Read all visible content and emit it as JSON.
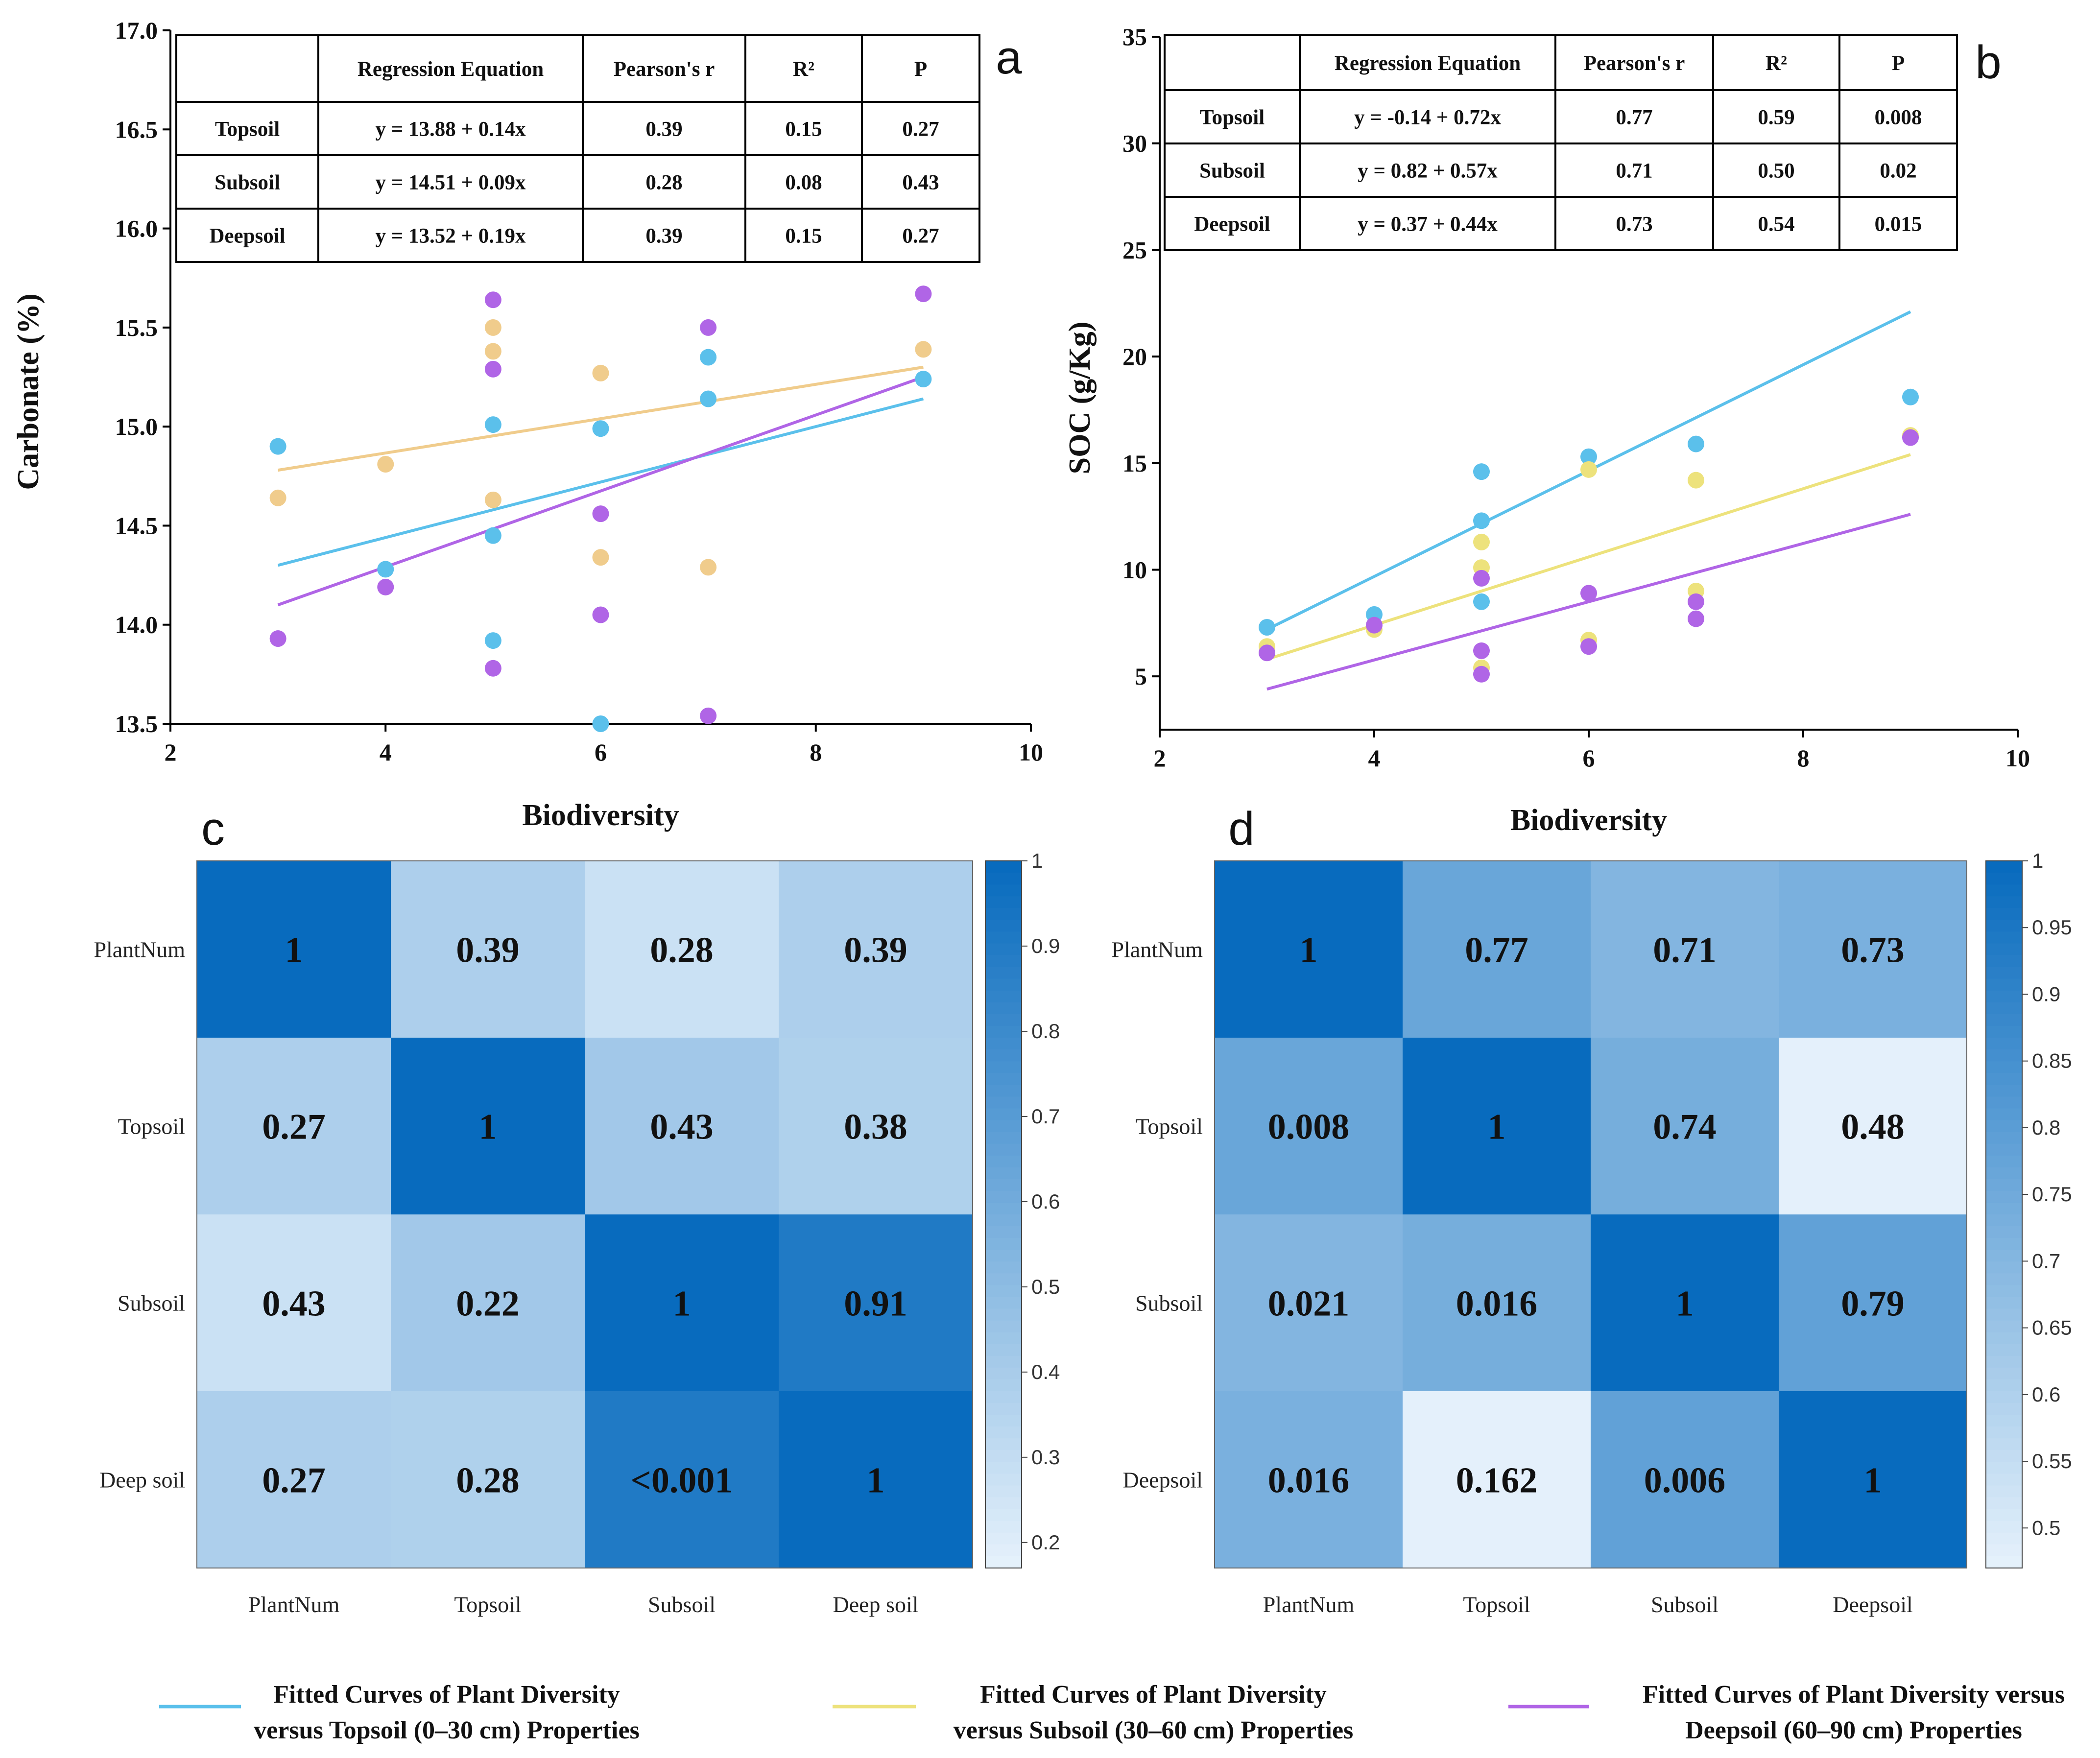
{
  "chart_data": [
    {
      "panel": "a",
      "type": "scatter",
      "xlabel": "Biodiversity",
      "ylabel": "Carbonate (%)",
      "xlim": [
        2,
        10
      ],
      "ylim": [
        13.5,
        17.0
      ],
      "xticks": [
        "2",
        "4",
        "6",
        "8",
        "10"
      ],
      "yticks": [
        "13.5",
        "14.0",
        "14.5",
        "15.0",
        "15.5",
        "16.0",
        "16.5",
        "17.0"
      ],
      "table": {
        "headers": [
          "",
          "Regression Equation",
          "Pearson's r",
          "R²",
          "P"
        ],
        "rows": [
          [
            "Topsoil",
            "y = 13.88 + 0.14x",
            "0.39",
            "0.15",
            "0.27"
          ],
          [
            "Subsoil",
            "y = 14.51 + 0.09x",
            "0.28",
            "0.08",
            "0.43"
          ],
          [
            "Deepsoil",
            "y = 13.52 + 0.19x",
            "0.39",
            "0.15",
            "0.27"
          ]
        ]
      },
      "series": [
        {
          "name": "Topsoil",
          "color": "#5bc0eb",
          "points": [
            [
              3,
              14.9
            ],
            [
              4,
              14.28
            ],
            [
              5,
              15.01
            ],
            [
              5,
              14.45
            ],
            [
              5,
              13.92
            ],
            [
              6,
              14.99
            ],
            [
              6,
              13.5
            ],
            [
              7,
              15.35
            ],
            [
              7,
              15.14
            ],
            [
              9,
              15.24
            ]
          ],
          "fit": [
            [
              3,
              14.3
            ],
            [
              9,
              15.14
            ]
          ]
        },
        {
          "name": "Subsoil",
          "color": "#f0cc8c",
          "points": [
            [
              3,
              14.64
            ],
            [
              4,
              14.81
            ],
            [
              5,
              15.5
            ],
            [
              5,
              15.38
            ],
            [
              5,
              14.63
            ],
            [
              6,
              15.27
            ],
            [
              6,
              14.34
            ],
            [
              7,
              14.29
            ],
            [
              9,
              15.39
            ]
          ],
          "fit": [
            [
              3,
              14.78
            ],
            [
              9,
              15.3
            ]
          ]
        },
        {
          "name": "Deepsoil",
          "color": "#b065e6",
          "points": [
            [
              3,
              13.93
            ],
            [
              4,
              14.19
            ],
            [
              5,
              15.64
            ],
            [
              5,
              15.29
            ],
            [
              5,
              13.78
            ],
            [
              6,
              14.56
            ],
            [
              6,
              14.05
            ],
            [
              7,
              15.5
            ],
            [
              7,
              13.54
            ],
            [
              9,
              15.67
            ]
          ],
          "fit": [
            [
              3,
              14.1
            ],
            [
              9,
              15.25
            ]
          ]
        }
      ]
    },
    {
      "panel": "b",
      "type": "scatter",
      "xlabel": "Biodiversity",
      "ylabel": "SOC (g/Kg)",
      "xlim": [
        2,
        10
      ],
      "ylim": [
        2.5,
        35
      ],
      "xticks": [
        "2",
        "4",
        "6",
        "8",
        "10"
      ],
      "yticks": [
        "5",
        "10",
        "15",
        "20",
        "25",
        "30",
        "35"
      ],
      "table": {
        "headers": [
          "",
          "Regression Equation",
          "Pearson's r",
          "R²",
          "P"
        ],
        "rows": [
          [
            "Topsoil",
            "y = -0.14 + 0.72x",
            "0.77",
            "0.59",
            "0.008"
          ],
          [
            "Subsoil",
            "y = 0.82 + 0.57x",
            "0.71",
            "0.50",
            "0.02"
          ],
          [
            "Deepsoil",
            "y = 0.37 + 0.44x",
            "0.73",
            "0.54",
            "0.015"
          ]
        ]
      },
      "series": [
        {
          "name": "Topsoil",
          "color": "#5bc0eb",
          "points": [
            [
              3,
              7.3
            ],
            [
              4,
              7.9
            ],
            [
              5,
              14.6
            ],
            [
              5,
              12.3
            ],
            [
              5,
              8.5
            ],
            [
              6,
              15.3
            ],
            [
              7,
              15.9
            ],
            [
              9,
              18.1
            ]
          ],
          "fit": [
            [
              3,
              7.2
            ],
            [
              9,
              22.1
            ]
          ]
        },
        {
          "name": "Subsoil",
          "color": "#ede27c",
          "points": [
            [
              3,
              6.4
            ],
            [
              4,
              7.2
            ],
            [
              5,
              11.3
            ],
            [
              5,
              10.1
            ],
            [
              5,
              5.4
            ],
            [
              6,
              14.7
            ],
            [
              6,
              6.7
            ],
            [
              7,
              14.2
            ],
            [
              7,
              9.0
            ],
            [
              9,
              16.3
            ]
          ],
          "fit": [
            [
              3,
              5.8
            ],
            [
              9,
              15.4
            ]
          ]
        },
        {
          "name": "Deepsoil",
          "color": "#b065e6",
          "points": [
            [
              3,
              6.1
            ],
            [
              4,
              7.4
            ],
            [
              5,
              9.6
            ],
            [
              5,
              6.2
            ],
            [
              5,
              5.1
            ],
            [
              6,
              8.9
            ],
            [
              6,
              6.4
            ],
            [
              7,
              8.5
            ],
            [
              7,
              7.7
            ],
            [
              9,
              16.2
            ]
          ],
          "fit": [
            [
              3,
              4.4
            ],
            [
              9,
              12.6
            ]
          ]
        }
      ]
    },
    {
      "panel": "c",
      "type": "heatmap",
      "rows": [
        "PlantNum",
        "Topsoil",
        "Subsoil",
        "Deep soil"
      ],
      "cols": [
        "PlantNum",
        "Topsoil",
        "Subsoil",
        "Deep soil"
      ],
      "labels": [
        [
          "1",
          "0.39",
          "0.28",
          "0.39"
        ],
        [
          "0.27",
          "1",
          "0.43",
          "0.38"
        ],
        [
          "0.43",
          "0.22",
          "1",
          "0.91"
        ],
        [
          "0.27",
          "0.28",
          "<0.001",
          "1"
        ]
      ],
      "colors": [
        [
          1.0,
          0.39,
          0.28,
          0.39
        ],
        [
          0.39,
          1.0,
          0.43,
          0.38
        ],
        [
          0.28,
          0.43,
          1.0,
          0.91
        ],
        [
          0.39,
          0.38,
          0.91,
          1.0
        ]
      ],
      "colorbar": {
        "min": 0.17,
        "max": 1.0,
        "ticks": [
          "0.2",
          "0.3",
          "0.4",
          "0.5",
          "0.6",
          "0.7",
          "0.8",
          "0.9",
          "1"
        ],
        "tick_values": [
          0.2,
          0.3,
          0.4,
          0.5,
          0.6,
          0.7,
          0.8,
          0.9,
          1.0
        ]
      }
    },
    {
      "panel": "d",
      "type": "heatmap",
      "rows": [
        "PlantNum",
        "Topsoil",
        "Subsoil",
        "Deepsoil"
      ],
      "cols": [
        "PlantNum",
        "Topsoil",
        "Subsoil",
        "Deepsoil"
      ],
      "labels": [
        [
          "1",
          "0.77",
          "0.71",
          "0.73"
        ],
        [
          "0.008",
          "1",
          "0.74",
          "0.48"
        ],
        [
          "0.021",
          "0.016",
          "1",
          "0.79"
        ],
        [
          "0.016",
          "0.162",
          "0.006",
          "1"
        ]
      ],
      "colors": [
        [
          1.0,
          0.77,
          0.71,
          0.73
        ],
        [
          0.77,
          1.0,
          0.74,
          0.48
        ],
        [
          0.71,
          0.74,
          1.0,
          0.79
        ],
        [
          0.73,
          0.48,
          0.79,
          1.0
        ]
      ],
      "colorbar": {
        "min": 0.47,
        "max": 1.0,
        "ticks": [
          "0.5",
          "0.55",
          "0.6",
          "0.65",
          "0.7",
          "0.75",
          "0.8",
          "0.85",
          "0.9",
          "0.95",
          "1"
        ],
        "tick_values": [
          0.5,
          0.55,
          0.6,
          0.65,
          0.7,
          0.75,
          0.8,
          0.85,
          0.9,
          0.95,
          1.0
        ]
      }
    }
  ],
  "legend": [
    {
      "color": "#5bc0eb",
      "line1": "Fitted Curves of Plant Diversity",
      "line2": "versus Topsoil (0–30 cm) Properties"
    },
    {
      "color": "#ede27c",
      "line1": "Fitted Curves of Plant Diversity",
      "line2": "versus Subsoil (30–60 cm) Properties"
    },
    {
      "color": "#b065e6",
      "line1": "Fitted Curves of Plant Diversity versus",
      "line2": "Deepsoil (60–90 cm) Properties"
    }
  ]
}
